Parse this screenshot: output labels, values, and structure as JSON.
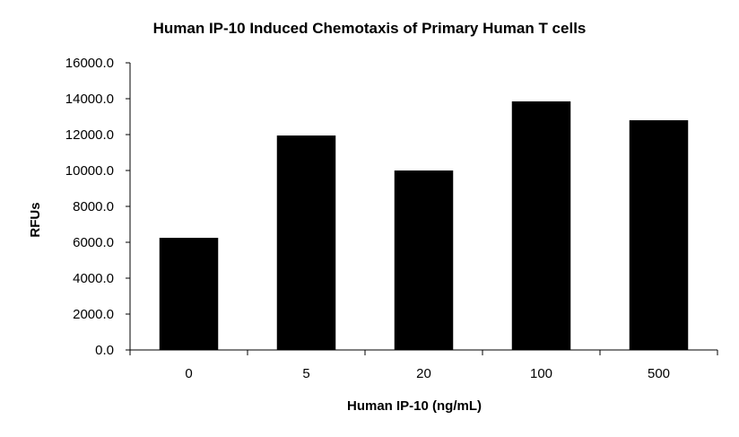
{
  "chart_data": {
    "type": "bar",
    "title": "Human IP-10 Induced Chemotaxis of Primary Human T cells",
    "xlabel": "Human IP-10 (ng/mL)",
    "ylabel": "RFUs",
    "categories": [
      "0",
      "5",
      "20",
      "100",
      "500"
    ],
    "values": [
      6250,
      11950,
      10000,
      13850,
      12800
    ],
    "ylim": [
      0,
      16000
    ],
    "yticks": [
      "0.0",
      "2000.0",
      "4000.0",
      "6000.0",
      "8000.0",
      "10000.0",
      "12000.0",
      "14000.0",
      "16000.0"
    ],
    "grid": false,
    "legend": "none",
    "bar_color": "#000000"
  }
}
